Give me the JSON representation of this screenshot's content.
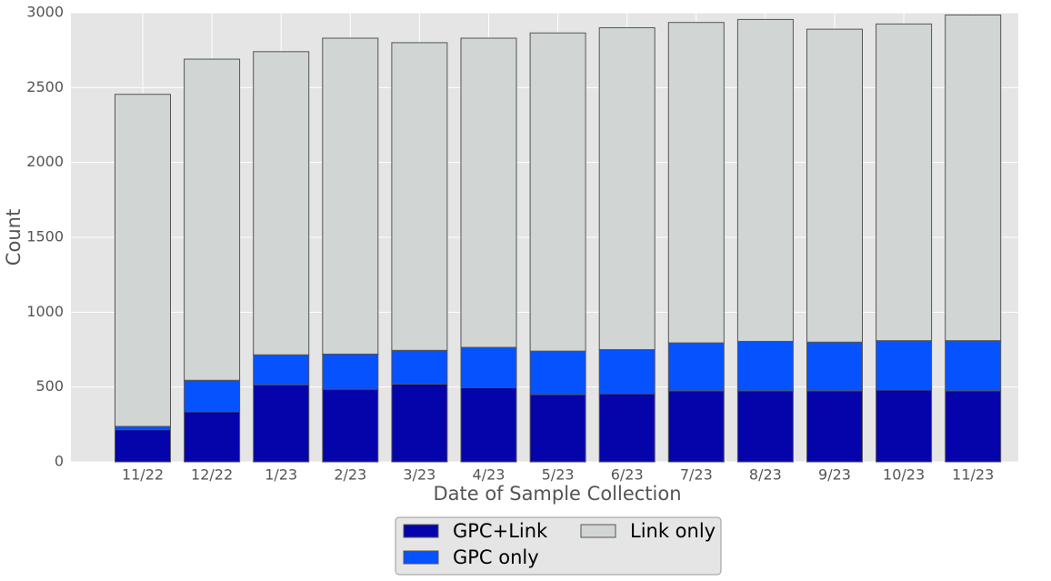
{
  "chart_data": {
    "type": "stacked_bar",
    "x_label": "Date of Sample Collection",
    "y_label": "Count",
    "categories": [
      "11/22",
      "12/22",
      "1/23",
      "2/23",
      "3/23",
      "4/23",
      "5/23",
      "6/23",
      "7/23",
      "8/23",
      "9/23",
      "10/23",
      "11/23"
    ],
    "series": [
      {
        "name": "GPC+Link",
        "color": "#0504aa",
        "values": [
          215,
          335,
          515,
          485,
          520,
          495,
          450,
          455,
          475,
          475,
          475,
          480,
          475
        ]
      },
      {
        "name": "GPC only",
        "color": "#0652ff",
        "values": [
          22,
          210,
          200,
          235,
          225,
          270,
          290,
          295,
          320,
          330,
          325,
          330,
          335
        ]
      },
      {
        "name": "Link only",
        "color": "#d1d5d4",
        "values": [
          2218,
          2145,
          2025,
          2110,
          2055,
          2065,
          2125,
          2150,
          2140,
          2150,
          2090,
          2115,
          2175
        ]
      }
    ],
    "ylim": [
      0,
      3000
    ],
    "yticks": [
      0,
      500,
      1000,
      1500,
      2000,
      2500,
      3000
    ],
    "grid": true,
    "legend": "bottom"
  }
}
